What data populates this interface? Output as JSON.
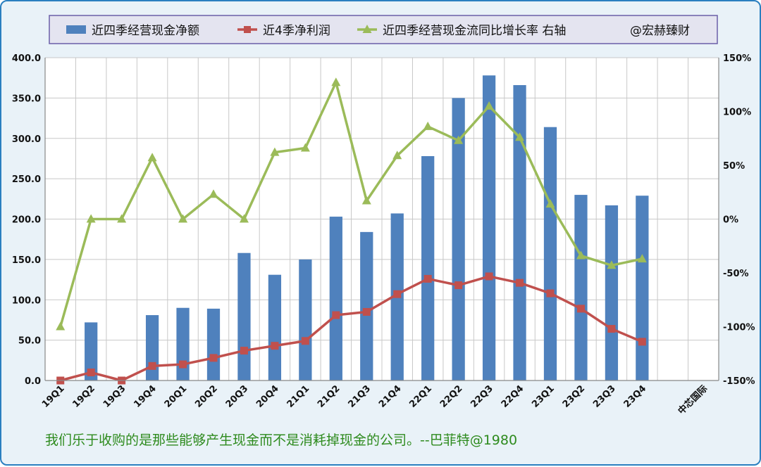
{
  "chart_data": {
    "type": "bar",
    "categories": [
      "19Q1",
      "19Q2",
      "19Q3",
      "19Q4",
      "20Q1",
      "20Q2",
      "20Q3",
      "20Q4",
      "21Q1",
      "21Q2",
      "21Q3",
      "21Q4",
      "22Q1",
      "22Q2",
      "22Q3",
      "22Q4",
      "23Q1",
      "23Q2",
      "23Q3",
      "23Q4"
    ],
    "extra_category_label": "中芯国际",
    "series": [
      {
        "name": "近四季经营现金净额",
        "type": "bar",
        "axis": "left",
        "color": "#4f81bd",
        "values": [
          null,
          72,
          null,
          81,
          90,
          89,
          158,
          131,
          150,
          203,
          184,
          207,
          278,
          350,
          378,
          366,
          314,
          230,
          217,
          229
        ]
      },
      {
        "name": "近4季净利润",
        "type": "line",
        "axis": "left",
        "color": "#c0504d",
        "values": [
          0,
          10,
          0,
          18,
          20,
          28,
          37,
          43,
          49,
          81,
          85,
          107,
          126,
          118,
          129,
          121,
          108,
          89,
          64,
          48
        ]
      },
      {
        "name": "近四季经营现金流同比增长率 右轴",
        "type": "line",
        "axis": "right",
        "color": "#9bbb59",
        "values": [
          -100,
          0,
          0,
          57,
          0,
          23,
          0,
          62,
          66,
          127,
          17,
          59,
          86,
          73,
          105,
          76,
          14,
          -34,
          -43,
          -37
        ]
      }
    ],
    "legend_extra": "@宏赫臻财",
    "ylim": [
      0,
      400
    ],
    "y_ticks": [
      "400.0",
      "350.0",
      "300.0",
      "250.0",
      "200.0",
      "150.0",
      "100.0",
      "50.0",
      "0.0"
    ],
    "y2lim": [
      -150,
      150
    ],
    "y2_ticks": [
      "150%",
      "100%",
      "50%",
      "0%",
      "-50%",
      "-100%",
      "-150%"
    ],
    "grid": true,
    "legend_position": "top",
    "footer_quote": "我们乐于收购的是那些能够产生现金而不是消耗掉现金的公司。--巴菲特@1980"
  }
}
